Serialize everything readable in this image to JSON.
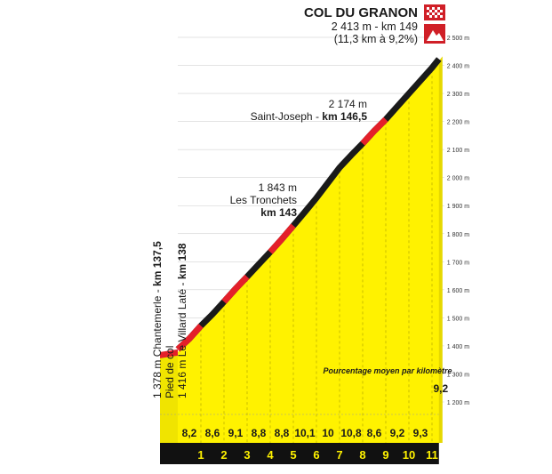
{
  "summit": {
    "name": "COL DU GRANON",
    "line1": "2 413 m - km 149",
    "line2": "(11,3 km à 9,2%)"
  },
  "waypoints": {
    "saint_joseph": {
      "alt": "2 174 m",
      "name": "Saint-Joseph - ",
      "km": "km 146,5"
    },
    "tronchets": {
      "alt": "1 843 m",
      "name": "Les Tronchets",
      "km": "km 143"
    },
    "chantemerle": {
      "text": "1 378 m Chantemerle - ",
      "km": "km 137,5"
    },
    "pied": {
      "text": "Pied de col"
    },
    "villard": {
      "text": "1 416 m Le Villard Laté - ",
      "km": "km 138"
    }
  },
  "legend_note": "Pourcentage moyen par kilomètre",
  "colors": {
    "fill": "#fff200",
    "road_dark": "#1a1a1a",
    "road_steep": "#e4202a",
    "band": "#111111",
    "band_text": "#fff200",
    "grid": "#c9c9c9"
  },
  "icons": {
    "finish": "checkered-flag-icon",
    "summit": "mountain-icon"
  },
  "chart_data": {
    "type": "area",
    "title": "COL DU GRANON",
    "ylabel": "",
    "xlabel": "",
    "ylim": [
      1200,
      2500
    ],
    "y_ticks": [
      1200,
      1300,
      1400,
      1500,
      1600,
      1700,
      1800,
      1900,
      2000,
      2100,
      2200,
      2300,
      2400,
      2500
    ],
    "y_tick_suffix": " m",
    "x_labels": [
      "1",
      "2",
      "3",
      "4",
      "5",
      "6",
      "7",
      "8",
      "9",
      "10",
      "11"
    ],
    "gradients": [
      "8,2",
      "8,6",
      "9,1",
      "8,8",
      "8,8",
      "10,1",
      "10",
      "10,8",
      "8,6",
      "9,2",
      "9,3",
      "9,2"
    ],
    "profile_km": [
      0,
      0.5,
      1,
      1.5,
      2,
      2.5,
      3,
      3.5,
      4,
      4.5,
      5,
      5.5,
      6,
      6.5,
      7,
      7.5,
      8,
      8.5,
      9,
      9.5,
      10,
      10.5,
      11,
      11.3
    ],
    "profile_alt": [
      1378,
      1416,
      1462,
      1503,
      1548,
      1594,
      1637,
      1681,
      1725,
      1771,
      1819,
      1868,
      1918,
      1972,
      2026,
      2070,
      2112,
      2157,
      2198,
      2244,
      2290,
      2336,
      2382,
      2413
    ],
    "steep_segments": [
      [
        0,
        1
      ],
      [
        2,
        3
      ],
      [
        4,
        5
      ],
      [
        8,
        9
      ]
    ]
  }
}
